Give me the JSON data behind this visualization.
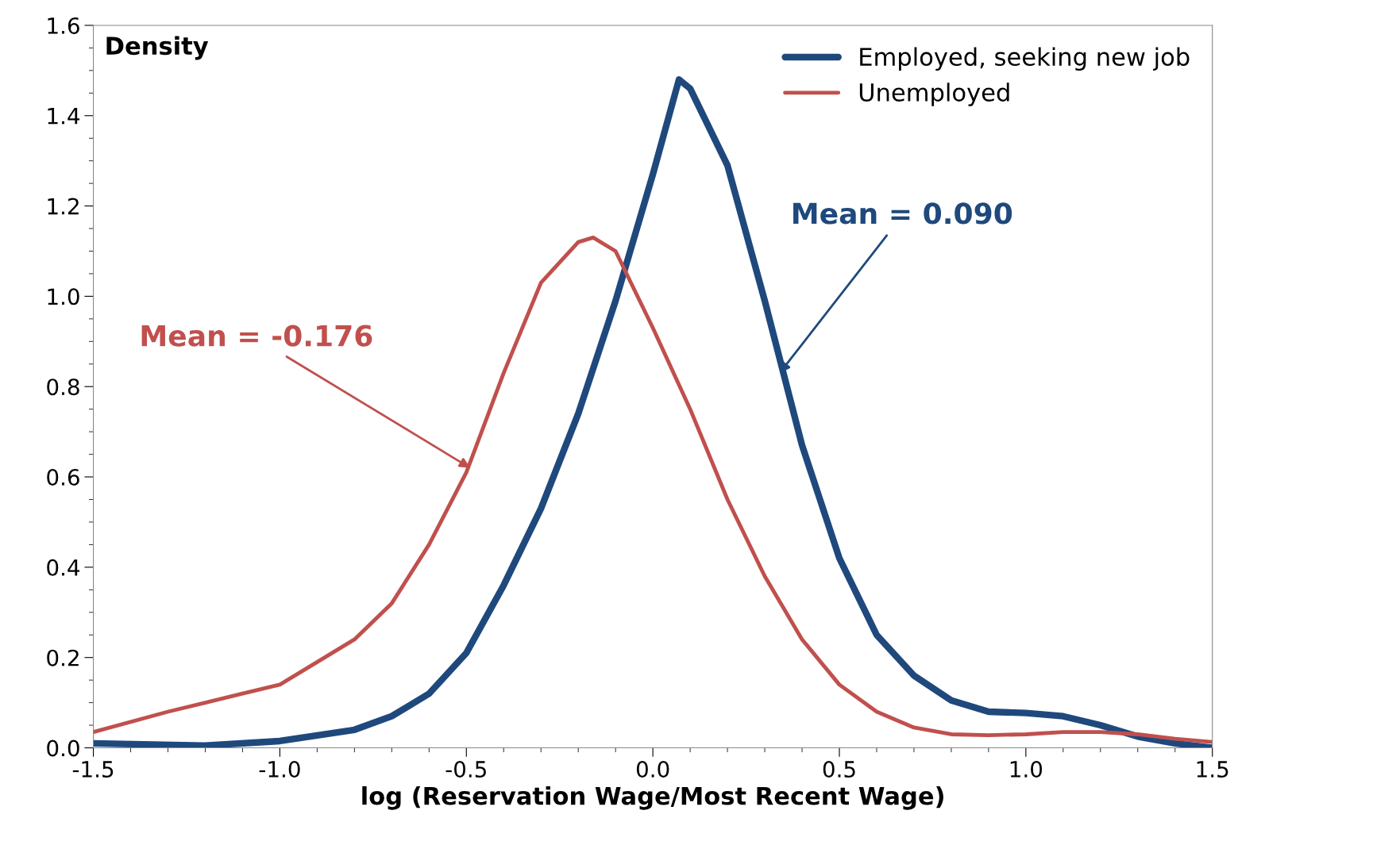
{
  "chart_data": {
    "type": "line",
    "xlabel": "log (Reservation Wage/Most Recent Wage)",
    "ylabel": "Density",
    "xlim": [
      -1.5,
      1.5
    ],
    "xticks": [
      {
        "value": -1.5,
        "label": "-1.5"
      },
      {
        "value": -1.0,
        "label": "-1.0"
      },
      {
        "value": -0.5,
        "label": "-0.5"
      },
      {
        "value": 0,
        "label": "0.0"
      },
      {
        "value": 0.5,
        "label": "0.5"
      },
      {
        "value": 1.0,
        "label": "1.0"
      },
      {
        "value": 1.5,
        "label": "1.5"
      }
    ],
    "ylim": [
      0,
      1.6
    ],
    "yticks": [
      {
        "value": 0,
        "label": "0.0"
      },
      {
        "value": 0.2,
        "label": "0.2"
      },
      {
        "value": 0.4,
        "label": "0.4"
      },
      {
        "value": 0.6,
        "label": "0.6"
      },
      {
        "value": 0.8,
        "label": "0.8"
      },
      {
        "value": 1.0,
        "label": "1.0"
      },
      {
        "value": 1.2,
        "label": "1.2"
      },
      {
        "value": 1.4,
        "label": "1.4"
      },
      {
        "value": 1.6,
        "label": "1.6"
      }
    ],
    "grid": false,
    "legend": "top right",
    "marker": "none",
    "line_style": "solid",
    "series": [
      {
        "name": "Employed, seeking new job",
        "color": "#1f497d",
        "x": [
          -1.5,
          -1.2,
          -1.0,
          -0.8,
          -0.7,
          -0.6,
          -0.5,
          -0.4,
          -0.3,
          -0.2,
          -0.1,
          0.0,
          0.07,
          0.1,
          0.2,
          0.3,
          0.4,
          0.5,
          0.6,
          0.7,
          0.8,
          0.9,
          1.0,
          1.1,
          1.2,
          1.3,
          1.4,
          1.5
        ],
        "values": [
          0.01,
          0.005,
          0.015,
          0.04,
          0.07,
          0.12,
          0.21,
          0.36,
          0.53,
          0.74,
          0.99,
          1.27,
          1.48,
          1.46,
          1.29,
          0.99,
          0.67,
          0.42,
          0.25,
          0.16,
          0.105,
          0.08,
          0.077,
          0.07,
          0.05,
          0.025,
          0.01,
          0.0
        ]
      },
      {
        "name": "Unemployed",
        "color": "#c0504d",
        "x": [
          -1.5,
          -1.3,
          -1.1,
          -1.0,
          -0.9,
          -0.8,
          -0.7,
          -0.6,
          -0.5,
          -0.4,
          -0.3,
          -0.2,
          -0.16,
          -0.1,
          0.0,
          0.1,
          0.2,
          0.3,
          0.4,
          0.5,
          0.6,
          0.7,
          0.8,
          0.9,
          1.0,
          1.1,
          1.2,
          1.3,
          1.4,
          1.5
        ],
        "values": [
          0.035,
          0.08,
          0.12,
          0.14,
          0.19,
          0.24,
          0.32,
          0.45,
          0.61,
          0.83,
          1.03,
          1.12,
          1.13,
          1.1,
          0.93,
          0.75,
          0.55,
          0.38,
          0.24,
          0.14,
          0.08,
          0.045,
          0.03,
          0.028,
          0.03,
          0.035,
          0.035,
          0.03,
          0.02,
          0.013
        ]
      }
    ],
    "annotations": [
      {
        "text": "Mean = 0.090",
        "x": 0.34,
        "y": 0.83
      },
      {
        "text": "Mean = -0.176",
        "x": -0.49,
        "y": 0.62
      }
    ]
  }
}
